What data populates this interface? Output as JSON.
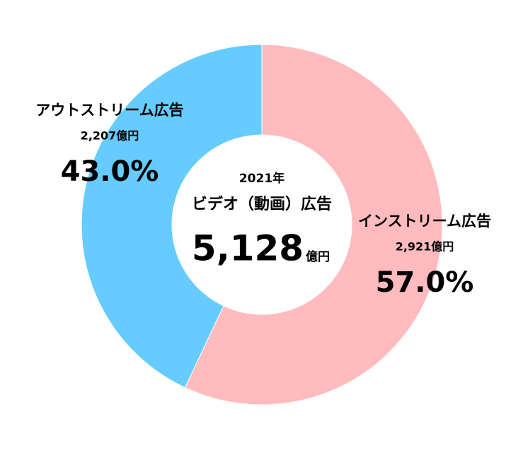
{
  "chart_data": {
    "type": "donut",
    "title": "ビデオ（動画）広告",
    "subtitle": "2021年",
    "total_label": "5,128",
    "total_unit": "億円",
    "categories": [
      "インストリーム広告",
      "アウトストリーム広告"
    ],
    "values": [
      57.0,
      43.0
    ],
    "value_labels": [
      "57.0%",
      "43.0%"
    ],
    "amount_labels": [
      "2,921億円",
      "2,207億円"
    ],
    "colors": [
      "#ffbbbd",
      "#66ccff"
    ]
  }
}
